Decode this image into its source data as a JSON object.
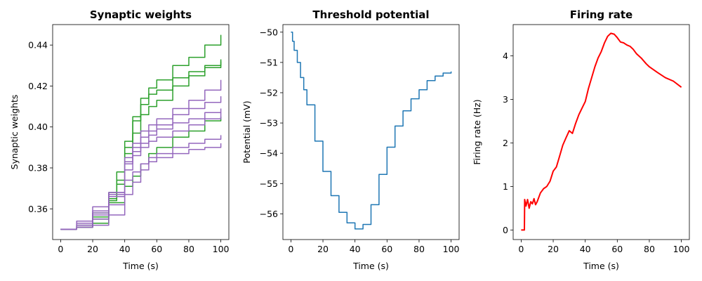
{
  "chart_data": [
    {
      "type": "line",
      "title": "Synaptic weights",
      "xlabel": "Time (s)",
      "ylabel": "Synaptic weights",
      "xlim": [
        -5,
        105
      ],
      "ylim": [
        0.345,
        0.45
      ],
      "xticks": [
        0,
        20,
        40,
        60,
        80,
        100
      ],
      "yticks": [
        0.36,
        0.38,
        0.4,
        0.42,
        0.44
      ],
      "ytick_decimals": 2,
      "grid": false,
      "step": true,
      "series": [
        {
          "color": "#2ca02c",
          "x": [
            0,
            10,
            20,
            30,
            35,
            40,
            45,
            50,
            55,
            60,
            70,
            80,
            90,
            100
          ],
          "y": [
            0.35,
            0.351,
            0.355,
            0.364,
            0.372,
            0.39,
            0.405,
            0.414,
            0.419,
            0.423,
            0.43,
            0.434,
            0.44,
            0.445
          ]
        },
        {
          "color": "#2ca02c",
          "x": [
            0,
            10,
            20,
            30,
            35,
            40,
            45,
            50,
            55,
            60,
            70,
            80,
            90,
            100
          ],
          "y": [
            0.35,
            0.352,
            0.358,
            0.368,
            0.378,
            0.393,
            0.403,
            0.411,
            0.416,
            0.418,
            0.424,
            0.427,
            0.43,
            0.433
          ]
        },
        {
          "color": "#2ca02c",
          "x": [
            0,
            10,
            20,
            30,
            35,
            40,
            45,
            50,
            55,
            60,
            70,
            80,
            90,
            100
          ],
          "y": [
            0.35,
            0.351,
            0.356,
            0.365,
            0.374,
            0.387,
            0.397,
            0.406,
            0.41,
            0.413,
            0.42,
            0.425,
            0.429,
            0.432
          ]
        },
        {
          "color": "#2ca02c",
          "x": [
            0,
            10,
            20,
            30,
            40,
            45,
            50,
            55,
            60,
            70,
            80,
            90,
            100
          ],
          "y": [
            0.35,
            0.351,
            0.353,
            0.363,
            0.371,
            0.376,
            0.382,
            0.387,
            0.39,
            0.395,
            0.398,
            0.403,
            0.405
          ]
        },
        {
          "color": "#9467bd",
          "x": [
            0,
            10,
            20,
            30,
            40,
            45,
            50,
            55,
            60,
            70,
            80,
            90,
            100
          ],
          "y": [
            0.35,
            0.352,
            0.357,
            0.366,
            0.385,
            0.392,
            0.398,
            0.401,
            0.404,
            0.409,
            0.413,
            0.418,
            0.423
          ]
        },
        {
          "color": "#9467bd",
          "x": [
            0,
            10,
            20,
            30,
            40,
            45,
            50,
            55,
            60,
            70,
            80,
            90,
            100
          ],
          "y": [
            0.35,
            0.353,
            0.359,
            0.368,
            0.382,
            0.39,
            0.395,
            0.398,
            0.401,
            0.406,
            0.409,
            0.412,
            0.415
          ]
        },
        {
          "color": "#9467bd",
          "x": [
            0,
            10,
            20,
            30,
            40,
            45,
            50,
            55,
            60,
            70,
            80,
            90,
            100
          ],
          "y": [
            0.35,
            0.352,
            0.358,
            0.367,
            0.383,
            0.388,
            0.392,
            0.396,
            0.399,
            0.402,
            0.404,
            0.407,
            0.409
          ]
        },
        {
          "color": "#9467bd",
          "x": [
            0,
            10,
            20,
            30,
            40,
            45,
            50,
            55,
            60,
            70,
            80,
            90,
            100
          ],
          "y": [
            0.35,
            0.354,
            0.361,
            0.368,
            0.379,
            0.386,
            0.39,
            0.393,
            0.395,
            0.398,
            0.401,
            0.404,
            0.407
          ]
        },
        {
          "color": "#9467bd",
          "x": [
            0,
            10,
            20,
            30,
            40,
            45,
            50,
            55,
            60,
            70,
            80,
            90,
            100
          ],
          "y": [
            0.35,
            0.351,
            0.355,
            0.362,
            0.374,
            0.378,
            0.382,
            0.385,
            0.387,
            0.39,
            0.392,
            0.394,
            0.396
          ]
        },
        {
          "color": "#9467bd",
          "x": [
            0,
            10,
            20,
            30,
            40,
            45,
            50,
            55,
            60,
            70,
            80,
            90,
            100
          ],
          "y": [
            0.35,
            0.351,
            0.352,
            0.357,
            0.367,
            0.373,
            0.379,
            0.383,
            0.385,
            0.387,
            0.389,
            0.39,
            0.392
          ]
        }
      ]
    },
    {
      "type": "line",
      "title": "Threshold potential",
      "xlabel": "Time (s)",
      "ylabel": "Potential (mV)",
      "xlim": [
        -5,
        105
      ],
      "ylim": [
        -56.85,
        -49.75
      ],
      "xticks": [
        0,
        20,
        40,
        60,
        80,
        100
      ],
      "yticks": [
        -56,
        -55,
        -54,
        -53,
        -52,
        -51,
        -50
      ],
      "ytick_decimals": 0,
      "grid": false,
      "step": true,
      "series": [
        {
          "color": "#1f77b4",
          "x": [
            0,
            1,
            2,
            4,
            6,
            8,
            10,
            15,
            20,
            25,
            30,
            35,
            40,
            42,
            45,
            50,
            55,
            60,
            65,
            70,
            75,
            80,
            85,
            90,
            95,
            100
          ],
          "y": [
            -50.0,
            -50.3,
            -50.6,
            -51.0,
            -51.5,
            -51.9,
            -52.4,
            -53.6,
            -54.6,
            -55.4,
            -55.95,
            -56.3,
            -56.5,
            -56.5,
            -56.35,
            -55.7,
            -54.7,
            -53.8,
            -53.1,
            -52.6,
            -52.2,
            -51.9,
            -51.6,
            -51.45,
            -51.35,
            -51.3
          ]
        }
      ]
    },
    {
      "type": "line",
      "title": "Firing rate",
      "xlabel": "Time (s)",
      "ylabel": "Firing rate (Hz)",
      "xlim": [
        -5,
        105
      ],
      "ylim": [
        -0.22,
        4.72
      ],
      "xticks": [
        0,
        20,
        40,
        60,
        80,
        100
      ],
      "yticks": [
        0,
        1,
        2,
        3,
        4
      ],
      "ytick_decimals": 0,
      "grid": false,
      "step": false,
      "series": [
        {
          "color": "#ff0000",
          "x": [
            0,
            2,
            2.2,
            3,
            4,
            5,
            6,
            7,
            8,
            9,
            10,
            12,
            14,
            16,
            18,
            20,
            22,
            24,
            26,
            28,
            30,
            32,
            34,
            36,
            38,
            40,
            42,
            44,
            46,
            48,
            50,
            52,
            54,
            56,
            58,
            60,
            62,
            64,
            66,
            68,
            70,
            72,
            75,
            78,
            80,
            85,
            90,
            95,
            100
          ],
          "y": [
            0,
            0,
            0.7,
            0.55,
            0.7,
            0.5,
            0.65,
            0.6,
            0.72,
            0.58,
            0.65,
            0.85,
            0.95,
            1.0,
            1.12,
            1.35,
            1.45,
            1.7,
            1.95,
            2.12,
            2.28,
            2.22,
            2.45,
            2.65,
            2.8,
            2.95,
            3.25,
            3.5,
            3.75,
            3.95,
            4.1,
            4.3,
            4.45,
            4.52,
            4.5,
            4.42,
            4.32,
            4.3,
            4.25,
            4.22,
            4.15,
            4.05,
            3.95,
            3.82,
            3.75,
            3.62,
            3.5,
            3.42,
            3.28
          ]
        }
      ]
    }
  ]
}
